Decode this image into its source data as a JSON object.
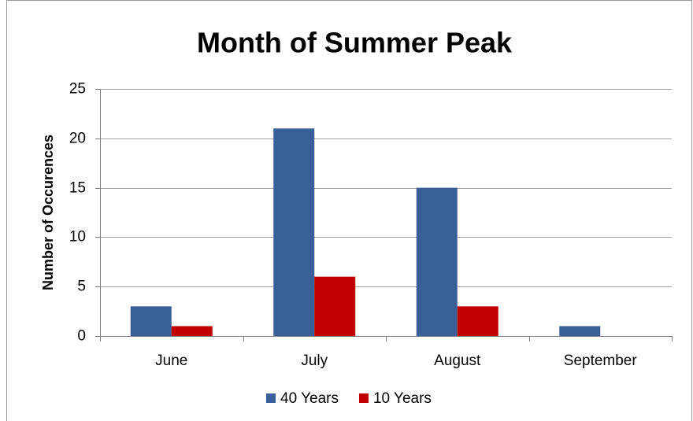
{
  "chart_data": {
    "type": "bar",
    "title": "Month of Summer Peak",
    "y_label": "Number of Occurences",
    "categories": [
      "June",
      "July",
      "August",
      "September"
    ],
    "series": [
      {
        "name": "40 Years",
        "color": "#386096",
        "values": [
          3,
          21,
          15,
          1
        ]
      },
      {
        "name": "10 Years",
        "color": "#c00000",
        "values": [
          1,
          6,
          3,
          0
        ]
      }
    ],
    "ylim": [
      0,
      25
    ],
    "yticks": [
      0,
      5,
      10,
      15,
      20,
      25
    ],
    "grid": true,
    "legend": "bottom"
  }
}
